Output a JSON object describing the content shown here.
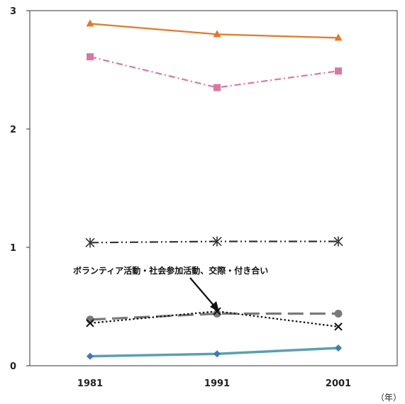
{
  "chart_data": {
    "type": "line",
    "title": "",
    "xlabel": "",
    "ylabel": "",
    "x_unit": "（年）",
    "categories": [
      "1981",
      "1991",
      "2001"
    ],
    "ylim": [
      0,
      3
    ],
    "yticks": [
      "0",
      "1",
      "2",
      "3"
    ],
    "grid": false,
    "legend": "none",
    "annotation": {
      "text": "ボランティア活動・社会参加活動、交際・付き合い"
    },
    "series": [
      {
        "values": [
          2.89,
          2.8,
          2.77
        ],
        "color": "#e07a2a",
        "marker": "triangle",
        "dash": "solid"
      },
      {
        "values": [
          2.61,
          2.35,
          2.49
        ],
        "color": "#d978a0",
        "marker": "square",
        "dash": "dashdot"
      },
      {
        "values": [
          1.04,
          1.05,
          1.05
        ],
        "color": "#333333",
        "marker": "asterisk",
        "dash": "dashdotdot"
      },
      {
        "values": [
          0.39,
          0.44,
          0.44
        ],
        "color": "#7a7a7a",
        "marker": "circle",
        "dash": "longdash"
      },
      {
        "values": [
          0.36,
          0.46,
          0.33
        ],
        "color": "#111111",
        "marker": "cross",
        "dash": "dotted"
      },
      {
        "values": [
          0.08,
          0.1,
          0.15
        ],
        "color": "#5aa0b0",
        "marker": "diamond",
        "dash": "solid"
      }
    ]
  }
}
